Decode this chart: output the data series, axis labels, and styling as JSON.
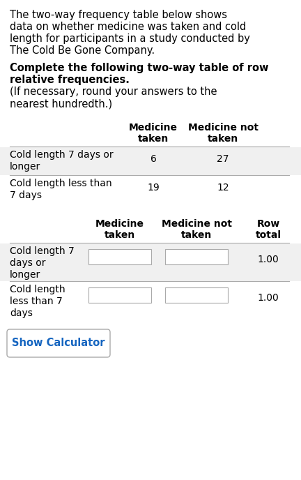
{
  "bg_color": "#ffffff",
  "text_color": "#000000",
  "intro_lines": [
    "The two-way frequency table below shows",
    "data on whether medicine was taken and cold",
    "length for participants in a study conducted by",
    "The Cold Be Gone Company."
  ],
  "bold_lines": [
    "Complete the following two-way table of row",
    "relative frequencies."
  ],
  "normal_lines": [
    "(If necessary, round your answers to the",
    "nearest hundredth.)"
  ],
  "t1_col1_header": "Medicine\ntaken",
  "t1_col2_header": "Medicine not\ntaken",
  "t1_row1_label_1": "Cold length 7 days or",
  "t1_row1_label_2": "longer",
  "t1_row2_label_1": "Cold length less than",
  "t1_row2_label_2": "7 days",
  "t1_r1c1": "6",
  "t1_r1c2": "27",
  "t1_r2c1": "19",
  "t1_r2c2": "12",
  "t2_col1_header": "Medicine\ntaken",
  "t2_col2_header": "Medicine not\ntaken",
  "t2_col3_header": "Row\ntotal",
  "t2_row1_label_1": "Cold length 7",
  "t2_row1_label_2": "days or",
  "t2_row1_label_3": "longer",
  "t2_row2_label_1": "Cold length",
  "t2_row2_label_2": "less than 7",
  "t2_row2_label_3": "days",
  "t2_r1c3": "1.00",
  "t2_r2c3": "1.00",
  "button_text": "Show Calculator",
  "button_color": "#1565c0",
  "row1_bg": "#f0f0f0",
  "row2_bg": "#ffffff"
}
